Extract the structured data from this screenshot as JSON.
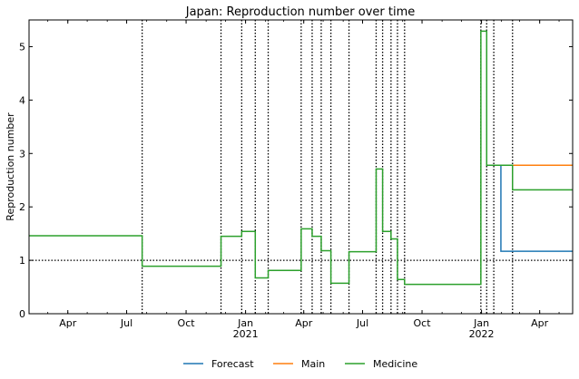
{
  "chart_data": {
    "type": "line",
    "title": "Japan: Reproduction number over time",
    "xlabel": "",
    "ylabel": "Reproduction number",
    "xlim": [
      "2020-02-01",
      "2022-05-22"
    ],
    "ylim": [
      0,
      5.5
    ],
    "y_ticks": [
      0,
      1,
      2,
      3,
      4,
      5
    ],
    "x_ticks": [
      {
        "date": "2020-04-01",
        "label": "Apr",
        "sub": ""
      },
      {
        "date": "2020-07-01",
        "label": "Jul",
        "sub": ""
      },
      {
        "date": "2020-10-01",
        "label": "Oct",
        "sub": ""
      },
      {
        "date": "2021-01-01",
        "label": "Jan",
        "sub": "2021"
      },
      {
        "date": "2021-04-01",
        "label": "Apr",
        "sub": ""
      },
      {
        "date": "2021-07-01",
        "label": "Jul",
        "sub": ""
      },
      {
        "date": "2021-10-01",
        "label": "Oct",
        "sub": ""
      },
      {
        "date": "2022-01-01",
        "label": "Jan",
        "sub": "2022"
      },
      {
        "date": "2022-04-01",
        "label": "Apr",
        "sub": ""
      }
    ],
    "reference_line": 1,
    "change_points": [
      "2020-07-25",
      "2020-11-24",
      "2020-12-26",
      "2021-01-16",
      "2021-02-05",
      "2021-03-28",
      "2021-04-14",
      "2021-04-28",
      "2021-05-13",
      "2021-06-10",
      "2021-07-22",
      "2021-08-01",
      "2021-08-14",
      "2021-08-24",
      "2021-09-04",
      "2021-12-31",
      "2022-01-09",
      "2022-01-20",
      "2022-02-18"
    ],
    "series": [
      {
        "name": "Forecast",
        "color": "#1f77b4",
        "points": [
          [
            "2022-01-20",
            2.78
          ],
          [
            "2022-01-31",
            2.78
          ],
          [
            "2022-01-31",
            1.17
          ],
          [
            "2022-05-22",
            1.17
          ]
        ]
      },
      {
        "name": "Main",
        "color": "#ff7f0e",
        "points": [
          [
            "2022-01-20",
            2.78
          ],
          [
            "2022-05-22",
            2.78
          ]
        ]
      },
      {
        "name": "Medicine",
        "color": "#2ca02c",
        "points": [
          [
            "2020-02-01",
            1.46
          ],
          [
            "2020-07-25",
            1.46
          ],
          [
            "2020-07-25",
            0.89
          ],
          [
            "2020-11-24",
            0.89
          ],
          [
            "2020-11-24",
            1.45
          ],
          [
            "2020-12-26",
            1.45
          ],
          [
            "2020-12-26",
            1.54
          ],
          [
            "2021-01-16",
            1.54
          ],
          [
            "2021-01-16",
            0.67
          ],
          [
            "2021-02-05",
            0.67
          ],
          [
            "2021-02-05",
            0.81
          ],
          [
            "2021-03-28",
            0.81
          ],
          [
            "2021-03-28",
            1.59
          ],
          [
            "2021-04-14",
            1.59
          ],
          [
            "2021-04-14",
            1.45
          ],
          [
            "2021-04-28",
            1.45
          ],
          [
            "2021-04-28",
            1.18
          ],
          [
            "2021-05-13",
            1.18
          ],
          [
            "2021-05-13",
            0.57
          ],
          [
            "2021-06-10",
            0.57
          ],
          [
            "2021-06-10",
            1.16
          ],
          [
            "2021-07-22",
            1.16
          ],
          [
            "2021-07-22",
            2.71
          ],
          [
            "2021-08-01",
            2.71
          ],
          [
            "2021-08-01",
            1.54
          ],
          [
            "2021-08-14",
            1.54
          ],
          [
            "2021-08-14",
            1.4
          ],
          [
            "2021-08-24",
            1.4
          ],
          [
            "2021-08-24",
            0.64
          ],
          [
            "2021-09-04",
            0.64
          ],
          [
            "2021-09-04",
            0.55
          ],
          [
            "2021-12-31",
            0.55
          ],
          [
            "2021-12-31",
            5.29
          ],
          [
            "2022-01-09",
            5.29
          ],
          [
            "2022-01-09",
            2.78
          ],
          [
            "2022-02-18",
            2.78
          ],
          [
            "2022-02-18",
            2.32
          ],
          [
            "2022-05-22",
            2.32
          ]
        ]
      }
    ],
    "legend": {
      "placement": "bottom-center",
      "entries": [
        "Forecast",
        "Main",
        "Medicine"
      ]
    }
  }
}
